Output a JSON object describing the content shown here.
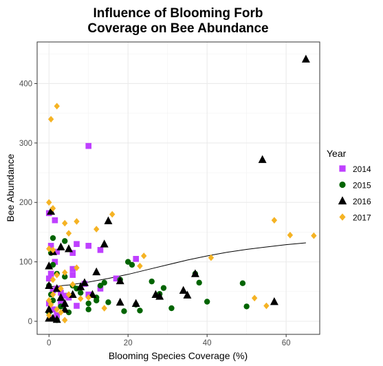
{
  "chart_data": {
    "type": "scatter",
    "title_lines": [
      "Influence of Blooming Forb",
      "Coverage on Bee Abundance"
    ],
    "xlabel": "Blooming Species Coverage (%)",
    "ylabel": "Bee Abundance",
    "xlim": [
      -3,
      68.5
    ],
    "ylim": [
      -22,
      470
    ],
    "x_ticks": [
      0,
      20,
      40,
      60
    ],
    "y_ticks": [
      0,
      100,
      200,
      300,
      400
    ],
    "grid": true,
    "legend": {
      "title": "Year",
      "position": "right"
    },
    "trend_line": [
      [
        0,
        58
      ],
      [
        5,
        61
      ],
      [
        10,
        66
      ],
      [
        15,
        72
      ],
      [
        20,
        79
      ],
      [
        25,
        87
      ],
      [
        30,
        95
      ],
      [
        35,
        103
      ],
      [
        40,
        110
      ],
      [
        45,
        116
      ],
      [
        50,
        121
      ],
      [
        55,
        125
      ],
      [
        60,
        129
      ],
      [
        65,
        132
      ]
    ],
    "series": [
      {
        "name": "2014",
        "marker": "square",
        "color": "#bf40ff",
        "points": [
          [
            0,
            182
          ],
          [
            0.5,
            127
          ],
          [
            1.5,
            170
          ],
          [
            1.5,
            100
          ],
          [
            0.5,
            80
          ],
          [
            2,
            117
          ],
          [
            10,
            295
          ],
          [
            7,
            130
          ],
          [
            10,
            127
          ],
          [
            13,
            120
          ],
          [
            22,
            105
          ],
          [
            6,
            115
          ],
          [
            6,
            88
          ],
          [
            6,
            78
          ],
          [
            9,
            63
          ],
          [
            2,
            55
          ],
          [
            0,
            72
          ],
          [
            1,
            52
          ],
          [
            4,
            43
          ],
          [
            7,
            26
          ],
          [
            3,
            30
          ],
          [
            17,
            72
          ],
          [
            13,
            55
          ],
          [
            10,
            45
          ],
          [
            5,
            40
          ],
          [
            0,
            30
          ],
          [
            1,
            20
          ],
          [
            0.5,
            5
          ],
          [
            2,
            10
          ],
          [
            3,
            48
          ]
        ]
      },
      {
        "name": "2015",
        "marker": "circle",
        "color": "#006400",
        "points": [
          [
            0,
            60
          ],
          [
            1,
            140
          ],
          [
            0.5,
            115
          ],
          [
            1,
            95
          ],
          [
            2,
            80
          ],
          [
            4,
            135
          ],
          [
            4,
            75
          ],
          [
            7,
            55
          ],
          [
            10,
            30
          ],
          [
            12,
            40
          ],
          [
            13,
            60
          ],
          [
            15,
            32
          ],
          [
            19,
            17
          ],
          [
            20,
            100
          ],
          [
            22,
            28
          ],
          [
            23,
            18
          ],
          [
            21,
            95
          ],
          [
            26,
            67
          ],
          [
            28,
            46
          ],
          [
            29,
            56
          ],
          [
            31,
            22
          ],
          [
            37,
            80
          ],
          [
            38,
            65
          ],
          [
            40,
            33
          ],
          [
            49,
            64
          ],
          [
            50,
            25
          ],
          [
            0.5,
            45
          ],
          [
            1,
            35
          ],
          [
            3,
            25
          ],
          [
            5,
            15
          ],
          [
            10,
            20
          ],
          [
            6,
            60
          ],
          [
            2,
            2
          ],
          [
            0,
            15
          ],
          [
            8,
            48
          ],
          [
            12,
            35
          ],
          [
            14,
            65
          ],
          [
            18,
            70
          ]
        ]
      },
      {
        "name": "2016",
        "marker": "triangle",
        "color": "#000000",
        "points": [
          [
            0.5,
            185
          ],
          [
            3,
            125
          ],
          [
            5,
            122
          ],
          [
            1,
            117
          ],
          [
            0,
            93
          ],
          [
            12,
            83
          ],
          [
            15,
            169
          ],
          [
            14,
            130
          ],
          [
            9,
            65
          ],
          [
            11,
            45
          ],
          [
            18,
            68
          ],
          [
            18,
            32
          ],
          [
            22,
            30
          ],
          [
            27,
            45
          ],
          [
            28,
            42
          ],
          [
            34,
            52
          ],
          [
            35,
            44
          ],
          [
            37,
            80
          ],
          [
            54,
            272
          ],
          [
            65,
            441
          ],
          [
            57,
            33
          ],
          [
            0,
            60
          ],
          [
            2,
            55
          ],
          [
            3,
            40
          ],
          [
            4,
            30
          ],
          [
            6,
            45
          ],
          [
            8,
            58
          ],
          [
            0,
            5
          ],
          [
            1,
            5
          ],
          [
            2,
            3
          ],
          [
            0,
            20
          ],
          [
            4,
            20
          ]
        ]
      },
      {
        "name": "2017",
        "marker": "diamond",
        "color": "#f5b324",
        "points": [
          [
            0.5,
            340
          ],
          [
            2,
            362
          ],
          [
            0,
            200
          ],
          [
            1,
            190
          ],
          [
            0,
            122
          ],
          [
            1,
            120
          ],
          [
            4,
            165
          ],
          [
            7,
            168
          ],
          [
            5,
            148
          ],
          [
            12,
            155
          ],
          [
            16,
            180
          ],
          [
            24,
            110
          ],
          [
            23,
            93
          ],
          [
            41,
            107
          ],
          [
            57,
            170
          ],
          [
            61,
            145
          ],
          [
            67,
            144
          ],
          [
            52,
            39
          ],
          [
            55,
            26
          ],
          [
            7,
            90
          ],
          [
            4,
            82
          ],
          [
            2,
            78
          ],
          [
            1,
            70
          ],
          [
            3,
            55
          ],
          [
            5,
            45
          ],
          [
            8,
            38
          ],
          [
            10,
            40
          ],
          [
            14,
            22
          ],
          [
            2,
            20
          ],
          [
            0,
            10
          ],
          [
            4,
            2
          ],
          [
            1,
            45
          ],
          [
            0,
            35
          ],
          [
            6,
            62
          ],
          [
            3,
            15
          ],
          [
            0.5,
            28
          ]
        ]
      }
    ]
  }
}
